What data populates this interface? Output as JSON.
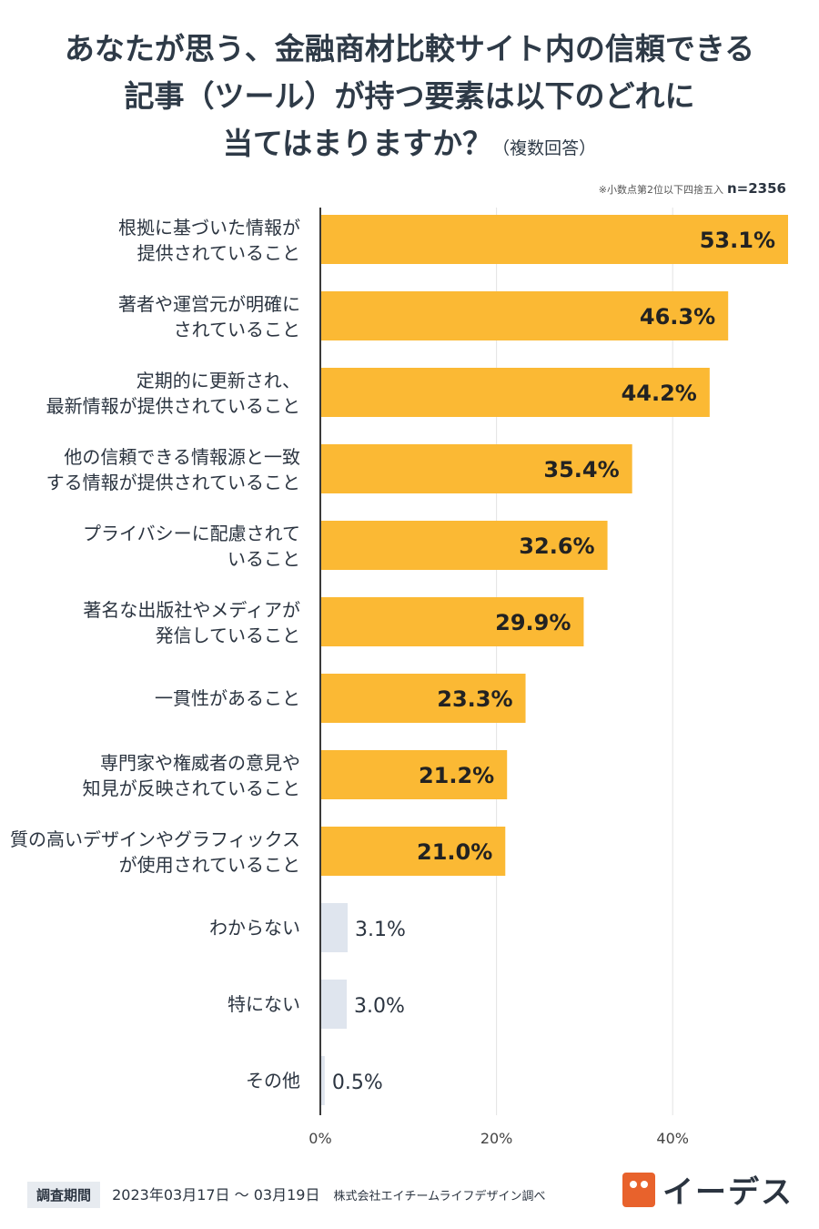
{
  "title": {
    "line1": "あなたが思う、金融商材比較サイト内の信頼できる",
    "line2": "記事（ツール）が持つ要素は以下のどれに",
    "line3": "当てはまりますか？",
    "suffix": "（複数回答）"
  },
  "note": {
    "rounding": "※小数点第2位以下四捨五入",
    "n": "n=2356"
  },
  "chart_data": {
    "type": "bar",
    "orientation": "horizontal",
    "categories": [
      [
        "根拠に基づいた情報が",
        "提供されていること"
      ],
      [
        "著者や運営元が明確に",
        "されていること"
      ],
      [
        "定期的に更新され、",
        "最新情報が提供されていること"
      ],
      [
        "他の信頼できる情報源と一致",
        "する情報が提供されていること"
      ],
      [
        "プライバシーに配慮されて",
        "いること"
      ],
      [
        "著名な出版社やメディアが",
        "発信していること"
      ],
      [
        "一貫性があること"
      ],
      [
        "専門家や権威者の意見や",
        "知見が反映されていること"
      ],
      [
        "質の高いデザインやグラフィックス",
        "が使用されていること"
      ],
      [
        "わからない"
      ],
      [
        "特にない"
      ],
      [
        "その他"
      ]
    ],
    "values": [
      53.1,
      46.3,
      44.2,
      35.4,
      32.6,
      29.9,
      23.3,
      21.2,
      21.0,
      3.1,
      3.0,
      0.5
    ],
    "value_labels": [
      "53.1%",
      "46.3%",
      "44.2%",
      "35.4%",
      "32.6%",
      "29.9%",
      "23.3%",
      "21.2%",
      "21.0%",
      "3.1%",
      "3.0%",
      "0.5%"
    ],
    "highlight": [
      true,
      true,
      true,
      true,
      true,
      true,
      true,
      true,
      true,
      false,
      false,
      false
    ],
    "x_ticks": [
      0,
      20,
      40
    ],
    "x_tick_labels": [
      "0%",
      "20%",
      "40%"
    ],
    "xlim": [
      0,
      53.1
    ],
    "colors": {
      "main": "#fbb934",
      "other": "#dfe5ee",
      "grid": "#e3e3e3",
      "axis": "#3a3a3a"
    }
  },
  "footer": {
    "period_label": "調査期間",
    "period": "2023年03月17日 〜 03月19日",
    "by": "株式会社エイチームライフデザイン調べ"
  },
  "logo": {
    "text": "イーデス",
    "icon": "owl-logo-icon"
  }
}
